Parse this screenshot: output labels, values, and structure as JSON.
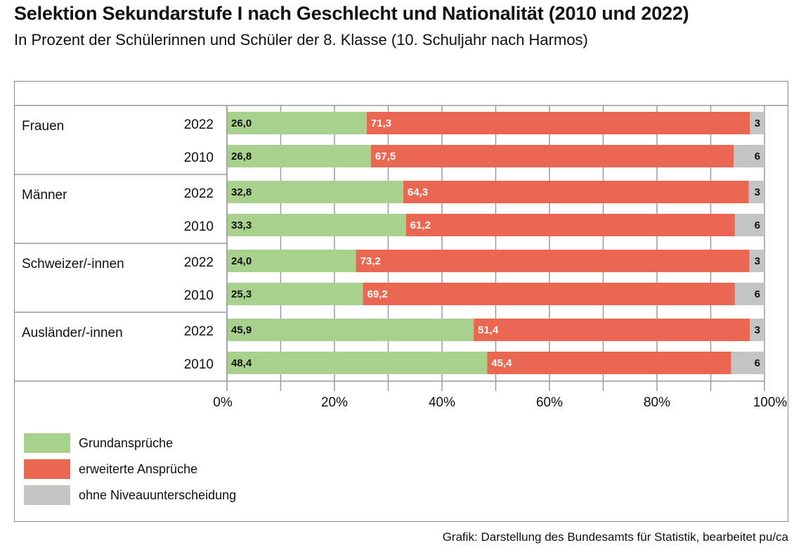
{
  "title": "Selektion Sekundarstufe I nach Geschlecht und Nationalität (2010 und 2022)",
  "subtitle": "In Prozent der Schülerinnen und Schüler der 8. Klasse (10. Schuljahr nach Harmos)",
  "source": "Grafik: Darstellung des Bundesamts für Statistik, bearbeitet pu/ca",
  "chart_data": {
    "type": "bar",
    "orientation": "horizontal",
    "stacked": true,
    "xlim": [
      0,
      100
    ],
    "x_ticks": [
      "0%",
      "20%",
      "40%",
      "60%",
      "80%",
      "100%"
    ],
    "grid": true,
    "legend_position": "bottom-left",
    "groups": [
      {
        "label": "Frauen",
        "rows": [
          {
            "year": "2022",
            "values": [
              26.0,
              71.3,
              2.7
            ],
            "labels": [
              "26,0",
              "71,3",
              "3"
            ]
          },
          {
            "year": "2010",
            "values": [
              26.8,
              67.5,
              5.7
            ],
            "labels": [
              "26,8",
              "67,5",
              "6"
            ]
          }
        ]
      },
      {
        "label": "Männer",
        "rows": [
          {
            "year": "2022",
            "values": [
              32.8,
              64.3,
              2.9
            ],
            "labels": [
              "32,8",
              "64,3",
              "3"
            ]
          },
          {
            "year": "2010",
            "values": [
              33.3,
              61.2,
              5.5
            ],
            "labels": [
              "33,3",
              "61,2",
              "6"
            ]
          }
        ]
      },
      {
        "label": "Schweizer/-innen",
        "rows": [
          {
            "year": "2022",
            "values": [
              24.0,
              73.2,
              2.8
            ],
            "labels": [
              "24,0",
              "73,2",
              "3"
            ]
          },
          {
            "year": "2010",
            "values": [
              25.3,
              69.2,
              5.5
            ],
            "labels": [
              "25,3",
              "69,2",
              "6"
            ]
          }
        ]
      },
      {
        "label": "Ausländer/-innen",
        "rows": [
          {
            "year": "2022",
            "values": [
              45.9,
              51.4,
              2.7
            ],
            "labels": [
              "45,9",
              "51,4",
              "3"
            ]
          },
          {
            "year": "2010",
            "values": [
              48.4,
              45.4,
              6.2
            ],
            "labels": [
              "48,4",
              "45,4",
              "6"
            ]
          }
        ]
      }
    ],
    "series": [
      {
        "name": "Grundansprüche",
        "color": "#a9d18e",
        "label_color": "#111111"
      },
      {
        "name": "erweiterte Ansprüche",
        "color": "#ea6851",
        "label_color": "#ffffff"
      },
      {
        "name": "ohne Niveauunterscheidung",
        "color": "#c4c4c4",
        "label_color": "#111111"
      }
    ]
  }
}
